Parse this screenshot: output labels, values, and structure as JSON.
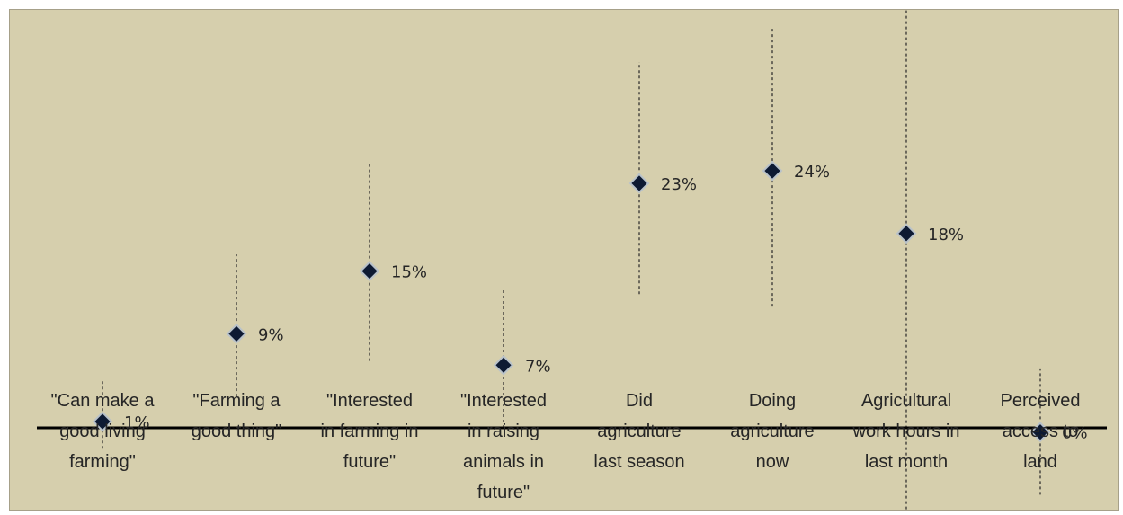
{
  "chart_data": {
    "type": "scatter",
    "title": "",
    "xlabel": "",
    "ylabel": "",
    "ylim": [
      -4,
      20
    ],
    "grid": false,
    "legend": "none",
    "zero_line": true,
    "categories": [
      "\"Can make a good living farming\"",
      "\"Farming a good thing\"",
      "\"Interested in farming in future\"",
      "\"Interested in raising animals in future\"",
      "Did agriculture last season",
      "Doing agriculture now",
      "Agricultural work hours in last month",
      "Perceived access to land"
    ],
    "category_lines": [
      [
        "\"Can make a",
        "good living",
        "farming\""
      ],
      [
        "\"Farming a",
        "good thing\""
      ],
      [
        "\"Interested",
        "in farming in",
        "future\""
      ],
      [
        "\"Interested",
        "in raising",
        "animals in",
        "future\""
      ],
      [
        "Did",
        "agriculture",
        "last season"
      ],
      [
        "Doing",
        "agriculture",
        "now"
      ],
      [
        "Agricultural",
        "work hours in",
        "last month"
      ],
      [
        "Perceived",
        "access to",
        "land"
      ]
    ],
    "series": [
      {
        "values": [
          0.3,
          4.5,
          7.5,
          3.0,
          11.7,
          12.3,
          9.3,
          -0.2
        ],
        "labels": [
          "1%",
          "9%",
          "15%",
          "7%",
          "23%",
          "24%",
          "18%",
          "0%"
        ],
        "ci_low": [
          -1.0,
          1.5,
          3.2,
          0.0,
          6.4,
          5.8,
          -3.9,
          -3.2
        ],
        "ci_high": [
          2.3,
          8.3,
          12.6,
          6.7,
          17.5,
          19.2,
          21.0,
          2.8
        ]
      }
    ],
    "colors": {
      "marker": "#0d1a33",
      "marker_edge": "#b9c2c9",
      "ci": "#262626",
      "axis": "#000000",
      "background": "#d6cfad"
    }
  }
}
